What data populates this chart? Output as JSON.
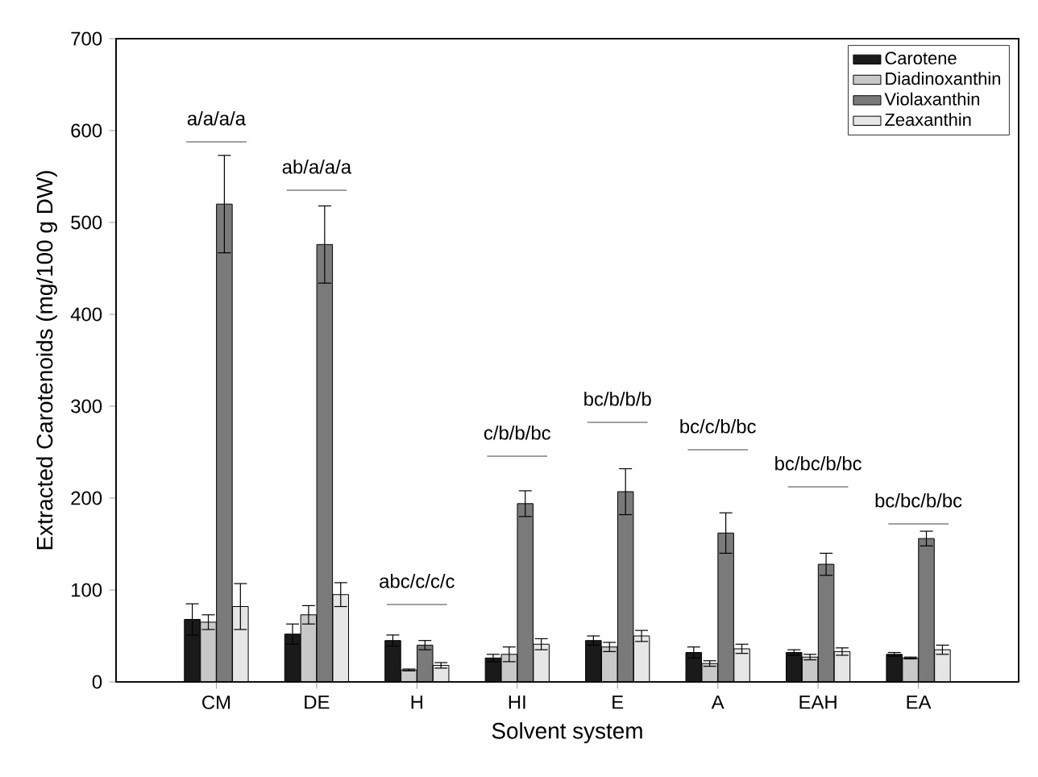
{
  "chart_data": {
    "type": "bar",
    "xlabel": "Solvent system",
    "ylabel": "Extracted Carotenoids (mg/100 g DW)",
    "categories": [
      "CM",
      "DE",
      "H",
      "HI",
      "E",
      "A",
      "EAH",
      "EA"
    ],
    "series": [
      {
        "name": "Carotene",
        "color": "#1a1a1a",
        "values": [
          68,
          52,
          45,
          26,
          45,
          32,
          32,
          30
        ],
        "errors": [
          17,
          11,
          6,
          4,
          5,
          6,
          3,
          2
        ]
      },
      {
        "name": "Diadinoxanthin",
        "color": "#c8c8c8",
        "values": [
          65,
          73,
          13,
          30,
          38,
          20,
          27,
          26
        ],
        "errors": [
          8,
          10,
          1,
          8,
          5,
          3,
          3,
          1
        ]
      },
      {
        "name": "Violaxanthin",
        "color": "#7a7a7a",
        "values": [
          520,
          476,
          40,
          194,
          207,
          162,
          128,
          156
        ],
        "errors": [
          53,
          42,
          5,
          14,
          25,
          22,
          12,
          8
        ]
      },
      {
        "name": "Zeaxanthin",
        "color": "#e6e6e6",
        "values": [
          82,
          95,
          18,
          41,
          50,
          36,
          33,
          35
        ],
        "errors": [
          25,
          13,
          3,
          6,
          6,
          5,
          4,
          5
        ]
      }
    ],
    "ylim": [
      0,
      700
    ],
    "yticks": [
      0,
      100,
      200,
      300,
      400,
      500,
      600,
      700
    ],
    "legend": "top right",
    "annotations": [
      "a/a/a/a",
      "ab/a/a/a",
      "abc/c/c/c",
      "c/b/b/bc",
      "bc/b/b/b",
      "bc/c/b/bc",
      "bc/bc/b/bc",
      "bc/bc/b/bc"
    ]
  }
}
